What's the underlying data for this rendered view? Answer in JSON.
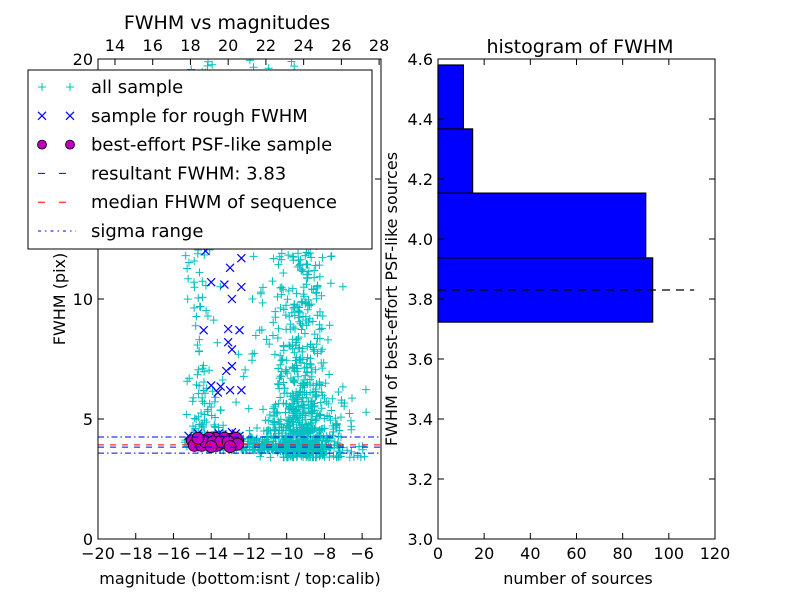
{
  "chart_data": [
    {
      "type": "scatter",
      "title": "FWHM vs magnitudes",
      "xlabel": "magnitude (bottom:isnt / top:calib)",
      "ylabel": "FWHM (pix)",
      "xlim": [
        -20,
        -5
      ],
      "ylim": [
        0,
        20
      ],
      "xticks": [
        -20,
        -18,
        -16,
        -14,
        -12,
        -10,
        -8,
        -6
      ],
      "yticks": [
        0,
        5,
        10,
        15,
        20
      ],
      "top_axis": {
        "xlim": [
          13.1,
          28.1
        ],
        "ticks": [
          14,
          16,
          18,
          20,
          22,
          24,
          26,
          28
        ]
      },
      "legend": {
        "placement": "upper-left",
        "entries": [
          {
            "label": "all sample",
            "marker": "plus",
            "color": "#00bfbf"
          },
          {
            "label": "sample for rough FWHM",
            "marker": "x",
            "color": "#0000ff"
          },
          {
            "label": "best-effort PSF-like sample",
            "marker": "circle",
            "color": "#bf00bf"
          },
          {
            "label": "resultant FWHM: 3.83",
            "line": "dashed",
            "color": "#0000ff"
          },
          {
            "label": "median FHWM of sequence",
            "line": "dashed",
            "color": "#ff0000"
          },
          {
            "label": "sigma range",
            "line": "dashdot",
            "color": "#0000ff"
          }
        ]
      },
      "hlines": [
        {
          "name": "resultant FWHM",
          "y": 3.83,
          "color": "#0000ff",
          "style": "dashed"
        },
        {
          "name": "median FWHM of sequence",
          "y": 3.92,
          "color": "#ff0000",
          "style": "dashed"
        },
        {
          "name": "sigma upper",
          "y": 4.25,
          "color": "#0000ff",
          "style": "dashdot"
        },
        {
          "name": "sigma lower",
          "y": 3.58,
          "color": "#0000ff",
          "style": "dashdot"
        }
      ],
      "all_sample_clusters": [
        {
          "cx": -14.5,
          "sx": 0.45,
          "ymin": 4.0,
          "ymax": 20,
          "n": 160
        },
        {
          "cx": -9.2,
          "sx": 0.7,
          "ymin": 3.6,
          "ymax": 13,
          "n": 520
        },
        {
          "cx": -8.5,
          "sx": 1.3,
          "ymin": 3.4,
          "ymax": 6.5,
          "n": 220
        },
        {
          "cx": -11.0,
          "sx": 1.6,
          "ymin": 3.7,
          "ymax": 4.3,
          "n": 200
        },
        {
          "cx": -10.5,
          "sx": 1.2,
          "ymin": 4.5,
          "ymax": 20,
          "n": 110
        }
      ],
      "rough_sample": [
        [
          -13.0,
          11.3
        ],
        [
          -14.0,
          10.7
        ],
        [
          -13.3,
          10.6
        ],
        [
          -12.4,
          10.5
        ],
        [
          -12.9,
          10.0
        ],
        [
          -14.3,
          12.0
        ],
        [
          -12.4,
          11.7
        ],
        [
          -14.4,
          8.7
        ],
        [
          -13.1,
          8.75
        ],
        [
          -12.5,
          8.7
        ],
        [
          -13.1,
          8.2
        ],
        [
          -12.9,
          7.9
        ],
        [
          -12.9,
          7.2
        ],
        [
          -13.2,
          7.0
        ],
        [
          -14.0,
          6.4
        ],
        [
          -13.5,
          6.35
        ],
        [
          -13.65,
          6.1
        ],
        [
          -13.0,
          6.2
        ],
        [
          -12.4,
          6.2
        ],
        [
          -15.2,
          4.3
        ],
        [
          -14.7,
          4.4
        ],
        [
          -14.4,
          4.3
        ],
        [
          -13.6,
          4.4
        ],
        [
          -13.4,
          4.35
        ],
        [
          -12.7,
          4.4
        ],
        [
          -12.5,
          4.3
        ],
        [
          -12.9,
          4.45
        ]
      ],
      "psf_sample": [
        [
          -15.0,
          4.1
        ],
        [
          -14.8,
          4.0
        ],
        [
          -14.6,
          4.15
        ],
        [
          -14.4,
          3.95
        ],
        [
          -14.2,
          4.1
        ],
        [
          -14.0,
          4.0
        ],
        [
          -13.8,
          4.2
        ],
        [
          -13.6,
          3.95
        ],
        [
          -13.4,
          4.1
        ],
        [
          -13.2,
          4.0
        ],
        [
          -13.0,
          4.15
        ],
        [
          -12.8,
          3.95
        ],
        [
          -12.6,
          4.1
        ],
        [
          -14.9,
          3.9
        ],
        [
          -14.5,
          3.9
        ],
        [
          -14.1,
          4.2
        ],
        [
          -13.7,
          3.9
        ],
        [
          -13.3,
          4.2
        ],
        [
          -12.9,
          3.9
        ],
        [
          -12.7,
          4.2
        ],
        [
          -14.3,
          4.05
        ],
        [
          -13.9,
          4.05
        ],
        [
          -13.5,
          4.05
        ],
        [
          -13.1,
          4.05
        ],
        [
          -12.6,
          3.95
        ],
        [
          -14.7,
          4.2
        ],
        [
          -13.0,
          3.85
        ],
        [
          -14.0,
          3.85
        ]
      ]
    },
    {
      "type": "bar",
      "orientation": "horizontal",
      "title": "histogram of FWHM",
      "xlabel": "number of sources",
      "ylabel": "FWHM of best-effort PSF-like sources",
      "xlim": [
        0,
        120
      ],
      "ylim": [
        3.0,
        4.6
      ],
      "xticks": [
        0,
        20,
        40,
        60,
        80,
        100,
        120
      ],
      "yticks": [
        "3.0",
        "3.2",
        "3.4",
        "3.6",
        "3.8",
        "4.0",
        "4.2",
        "4.4",
        "4.6"
      ],
      "bins": [
        {
          "from": 3.723,
          "to": 3.937,
          "count": 93
        },
        {
          "from": 3.937,
          "to": 4.153,
          "count": 90
        },
        {
          "from": 4.153,
          "to": 4.367,
          "count": 15
        },
        {
          "from": 4.367,
          "to": 4.58,
          "count": 11
        }
      ],
      "bar_color": "#0000ff",
      "hline": {
        "y": 3.83,
        "xmax": 111,
        "style": "dashed",
        "color": "#000000"
      }
    }
  ]
}
